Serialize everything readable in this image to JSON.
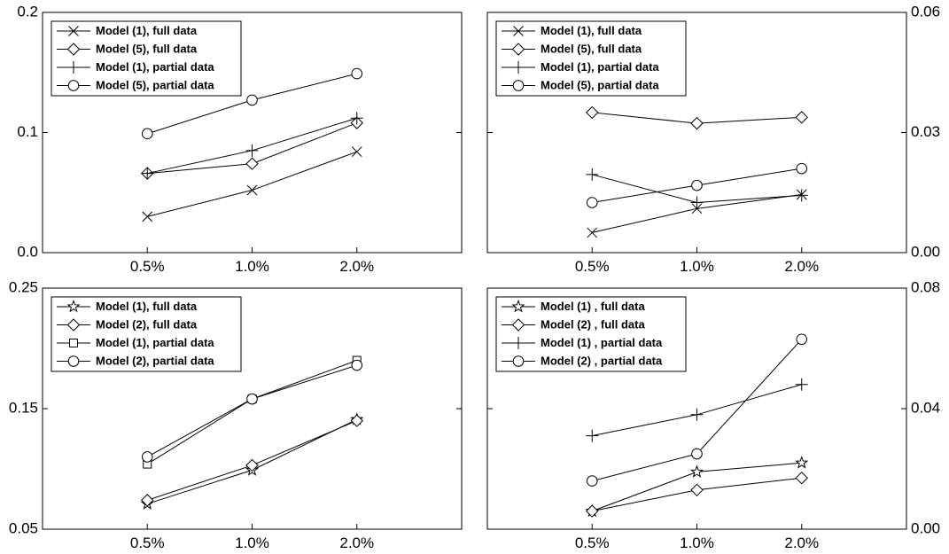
{
  "chart_data": [
    {
      "type": "line",
      "categories": [
        "0.5%",
        "1.0%",
        "2.0%"
      ],
      "ylim": [
        0,
        0.2
      ],
      "yticks": [
        "0.0",
        "0.1",
        "0.2"
      ],
      "yaxis_side": "left",
      "legend_position": "top-left",
      "series": [
        {
          "name": "Model (1), full data",
          "marker": "x",
          "values": [
            0.03,
            0.052,
            0.084
          ]
        },
        {
          "name": "Model (5), full data",
          "marker": "diamond",
          "values": [
            0.066,
            0.074,
            0.108
          ]
        },
        {
          "name": "Model (1), partial data",
          "marker": "plus",
          "values": [
            0.066,
            0.085,
            0.112
          ]
        },
        {
          "name": "Model (5), partial data",
          "marker": "circle",
          "values": [
            0.099,
            0.127,
            0.149
          ]
        }
      ]
    },
    {
      "type": "line",
      "categories": [
        "0.5%",
        "1.0%",
        "2.0%"
      ],
      "ylim": [
        0,
        0.06
      ],
      "yticks": [
        "0.00",
        "0.03",
        "0.06"
      ],
      "yaxis_side": "right",
      "legend_position": "top-left",
      "series": [
        {
          "name": "Model (1), full data",
          "marker": "x",
          "values": [
            0.005,
            0.011,
            0.0145
          ]
        },
        {
          "name": "Model (5), full data",
          "marker": "diamond",
          "values": [
            0.035,
            0.0323,
            0.0338
          ]
        },
        {
          "name": "Model (1), partial data",
          "marker": "plus",
          "values": [
            0.0195,
            0.0125,
            0.0143
          ]
        },
        {
          "name": "Model (5), partial data",
          "marker": "circle",
          "values": [
            0.0125,
            0.0168,
            0.021
          ]
        }
      ]
    },
    {
      "type": "line",
      "categories": [
        "0.5%",
        "1.0%",
        "2.0%"
      ],
      "ylim": [
        0.05,
        0.25
      ],
      "yticks": [
        "0.05",
        "0.15",
        "0.25"
      ],
      "yaxis_side": "left",
      "legend_position": "top-left",
      "series": [
        {
          "name": "Model (1), full data",
          "marker": "star",
          "values": [
            0.071,
            0.099,
            0.141
          ]
        },
        {
          "name": "Model (2), full data",
          "marker": "diamond",
          "values": [
            0.074,
            0.103,
            0.14
          ]
        },
        {
          "name": "Model (1), partial data",
          "marker": "square",
          "values": [
            0.104,
            0.158,
            0.19
          ]
        },
        {
          "name": "Model (2), partial data",
          "marker": "circle",
          "values": [
            0.11,
            0.158,
            0.186
          ]
        }
      ]
    },
    {
      "type": "line",
      "categories": [
        "0.5%",
        "1.0%",
        "2.0%"
      ],
      "ylim": [
        0,
        0.08
      ],
      "yticks": [
        "0.00",
        "0.04",
        "0.08"
      ],
      "yaxis_side": "right",
      "legend_position": "top-left",
      "series": [
        {
          "name": "Model (1) , full data",
          "marker": "star",
          "values": [
            0.006,
            0.019,
            0.022
          ]
        },
        {
          "name": "Model (2) , full data",
          "marker": "diamond",
          "values": [
            0.006,
            0.013,
            0.017
          ]
        },
        {
          "name": "Model (1) , partial data",
          "marker": "plus",
          "values": [
            0.031,
            0.038,
            0.048
          ]
        },
        {
          "name": "Model (2) , partial data",
          "marker": "circle",
          "values": [
            0.016,
            0.025,
            0.063
          ]
        }
      ]
    }
  ]
}
